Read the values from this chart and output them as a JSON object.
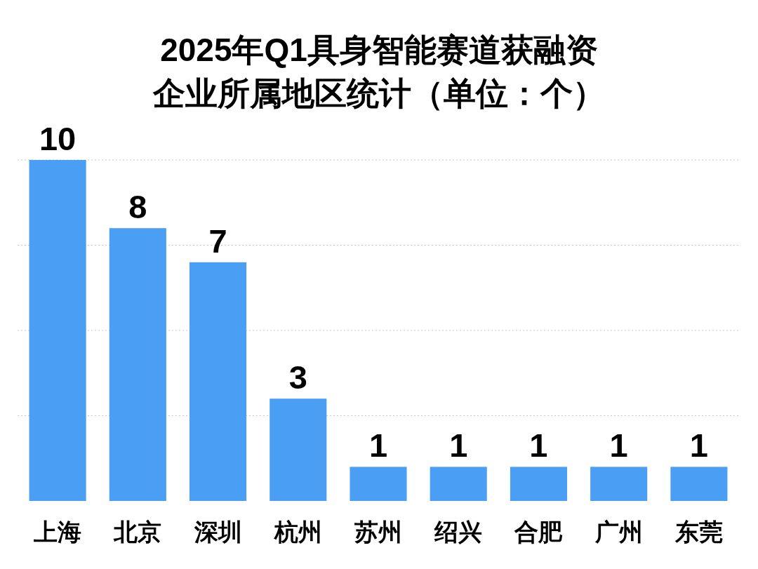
{
  "chart_data": {
    "type": "bar",
    "title": "2025年Q1具身智能赛道获融资企业所属地区统计（单位：个）",
    "categories": [
      "上海",
      "北京",
      "深圳",
      "杭州",
      "苏州",
      "绍兴",
      "合肥",
      "广州",
      "东莞"
    ],
    "values": [
      10,
      8,
      7,
      3,
      1,
      1,
      1,
      1,
      1
    ],
    "color": "#4a9ff5",
    "ylim": [
      0,
      10
    ],
    "yticks": [
      {
        "value": 2.5,
        "label": null
      },
      {
        "value": 5,
        "label": null
      },
      {
        "value": 7.5,
        "label": null
      },
      {
        "value": 10,
        "label": null
      }
    ],
    "grid": "y",
    "tick_labels": "x",
    "data_labels": true
  }
}
